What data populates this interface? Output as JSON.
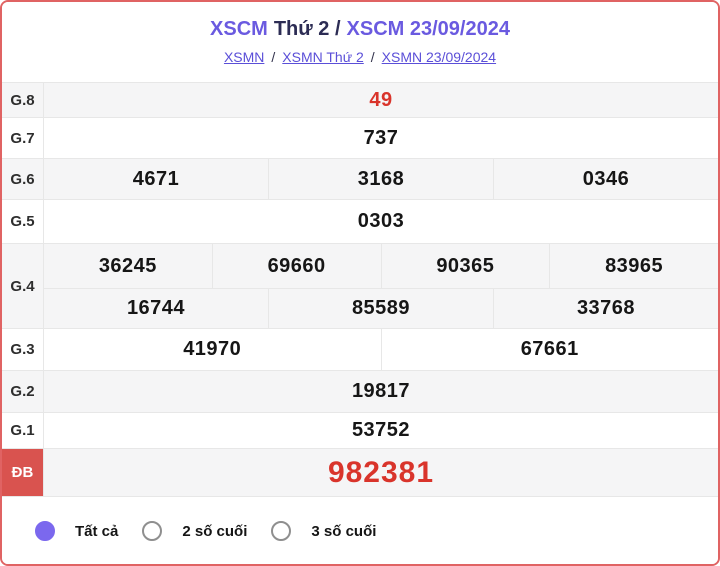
{
  "header": {
    "title": {
      "draw": "XSCM",
      "weekday": "Thứ 2 /",
      "draw_date": "XSCM 23/09/2024"
    },
    "breadcrumbs": [
      "XSMN",
      "XSMN Thứ 2",
      "XSMN 23/09/2024"
    ],
    "separator": "/"
  },
  "results": {
    "rows": [
      {
        "label": "G.8",
        "values": [
          "49"
        ]
      },
      {
        "label": "G.7",
        "values": [
          "737"
        ]
      },
      {
        "label": "G.6",
        "values": [
          "4671",
          "3168",
          "0346"
        ]
      },
      {
        "label": "G.5",
        "values": [
          "0303"
        ]
      },
      {
        "label": "G.4",
        "values": [
          "36245",
          "69660",
          "90365",
          "83965"
        ],
        "values2": [
          "16744",
          "85589",
          "33768"
        ]
      },
      {
        "label": "G.3",
        "values": [
          "41970",
          "67661"
        ]
      },
      {
        "label": "G.2",
        "values": [
          "19817"
        ]
      },
      {
        "label": "G.1",
        "values": [
          "53752"
        ]
      },
      {
        "label": "ĐB",
        "values": [
          "982381"
        ]
      }
    ]
  },
  "filters": {
    "options": [
      {
        "label": "Tất cả",
        "selected": true
      },
      {
        "label": "2 số cuối",
        "selected": false
      },
      {
        "label": "3 số cuối",
        "selected": false
      }
    ]
  },
  "colors": {
    "accent_purple": "#6a5ae0",
    "title_dark": "#2c2c54",
    "link_purple": "#5b4fd8",
    "highlight_red": "#d9342b",
    "jackpot_label_bg": "#d9534f",
    "card_border": "#e06363",
    "row_alt_bg": "#f5f5f6",
    "radio_selected": "#7b68ee"
  }
}
